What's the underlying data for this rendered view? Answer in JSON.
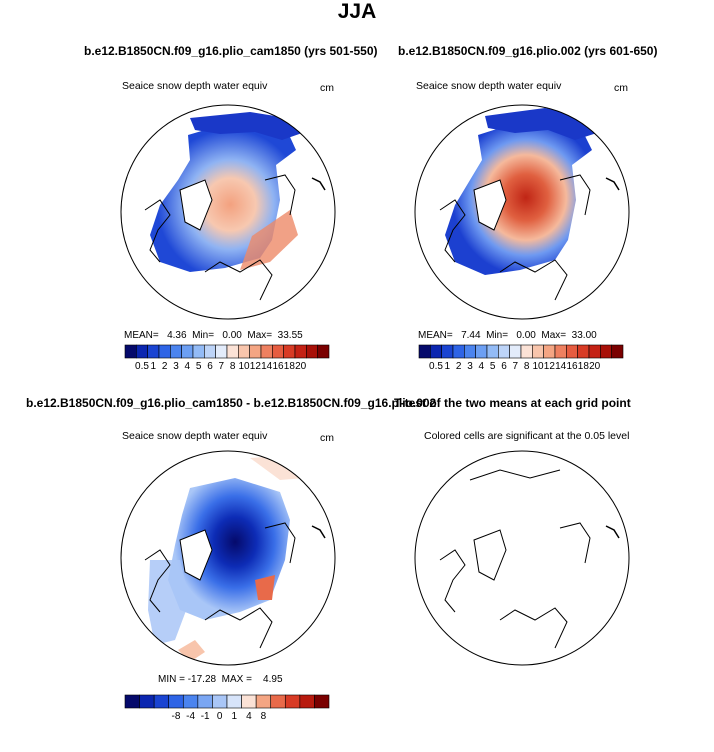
{
  "season": "JJA",
  "panel_tl": {
    "title": "b.e12.B1850CN.f09_g16.plio_cam1850 (yrs 501-550)",
    "variable": "Seaice snow depth water equiv",
    "units": "cm",
    "stats": "MEAN=   4.36  Min=   0.00  Max=  33.55"
  },
  "panel_tr": {
    "title": "b.e12.B1850CN.f09_g16.plio.002 (yrs 601-650)",
    "variable": "Seaice snow depth water equiv",
    "units": "cm",
    "stats": "MEAN=   7.44  Min=   0.00  Max=  33.00"
  },
  "panel_bl": {
    "title": "b.e12.B1850CN.f09_g16.plio_cam1850 - b.e12.B1850CN.f09_g16.plio.002",
    "variable": "Seaice snow depth water equiv",
    "units": "cm",
    "stats": "MIN = -17.28  MAX =    4.95"
  },
  "panel_br": {
    "title": "T-test of the two means at each grid point",
    "variable": "Colored cells are significant at the 0.05 level"
  },
  "colorbar_abs": {
    "colors": [
      "#050a6b",
      "#0b26b0",
      "#1a44d2",
      "#2e64e6",
      "#4b84ef",
      "#6c9ff3",
      "#93bbf6",
      "#bdd4f8",
      "#e3ecfb",
      "#fbe2d6",
      "#f8c5ac",
      "#f4a583",
      "#ee8060",
      "#e65c40",
      "#d83b25",
      "#c42114",
      "#a81008",
      "#7a0000"
    ],
    "labels": [
      "0.5",
      "1",
      "2",
      "3",
      "4",
      "5",
      "6",
      "7",
      "8",
      "10",
      "12",
      "14",
      "16",
      "18",
      "20"
    ]
  },
  "colorbar_diff": {
    "colors": [
      "#050a6b",
      "#0b26b0",
      "#1a44d2",
      "#2e64e6",
      "#4b84ef",
      "#7aa6f3",
      "#a9c6f7",
      "#d7e4fa",
      "#fbe2d6",
      "#f4a583",
      "#e86a4a",
      "#d83b25",
      "#b81a0e",
      "#7a0000"
    ],
    "labels": [
      "-8",
      "-4",
      "-1",
      "0",
      "1",
      "4",
      "8"
    ]
  }
}
